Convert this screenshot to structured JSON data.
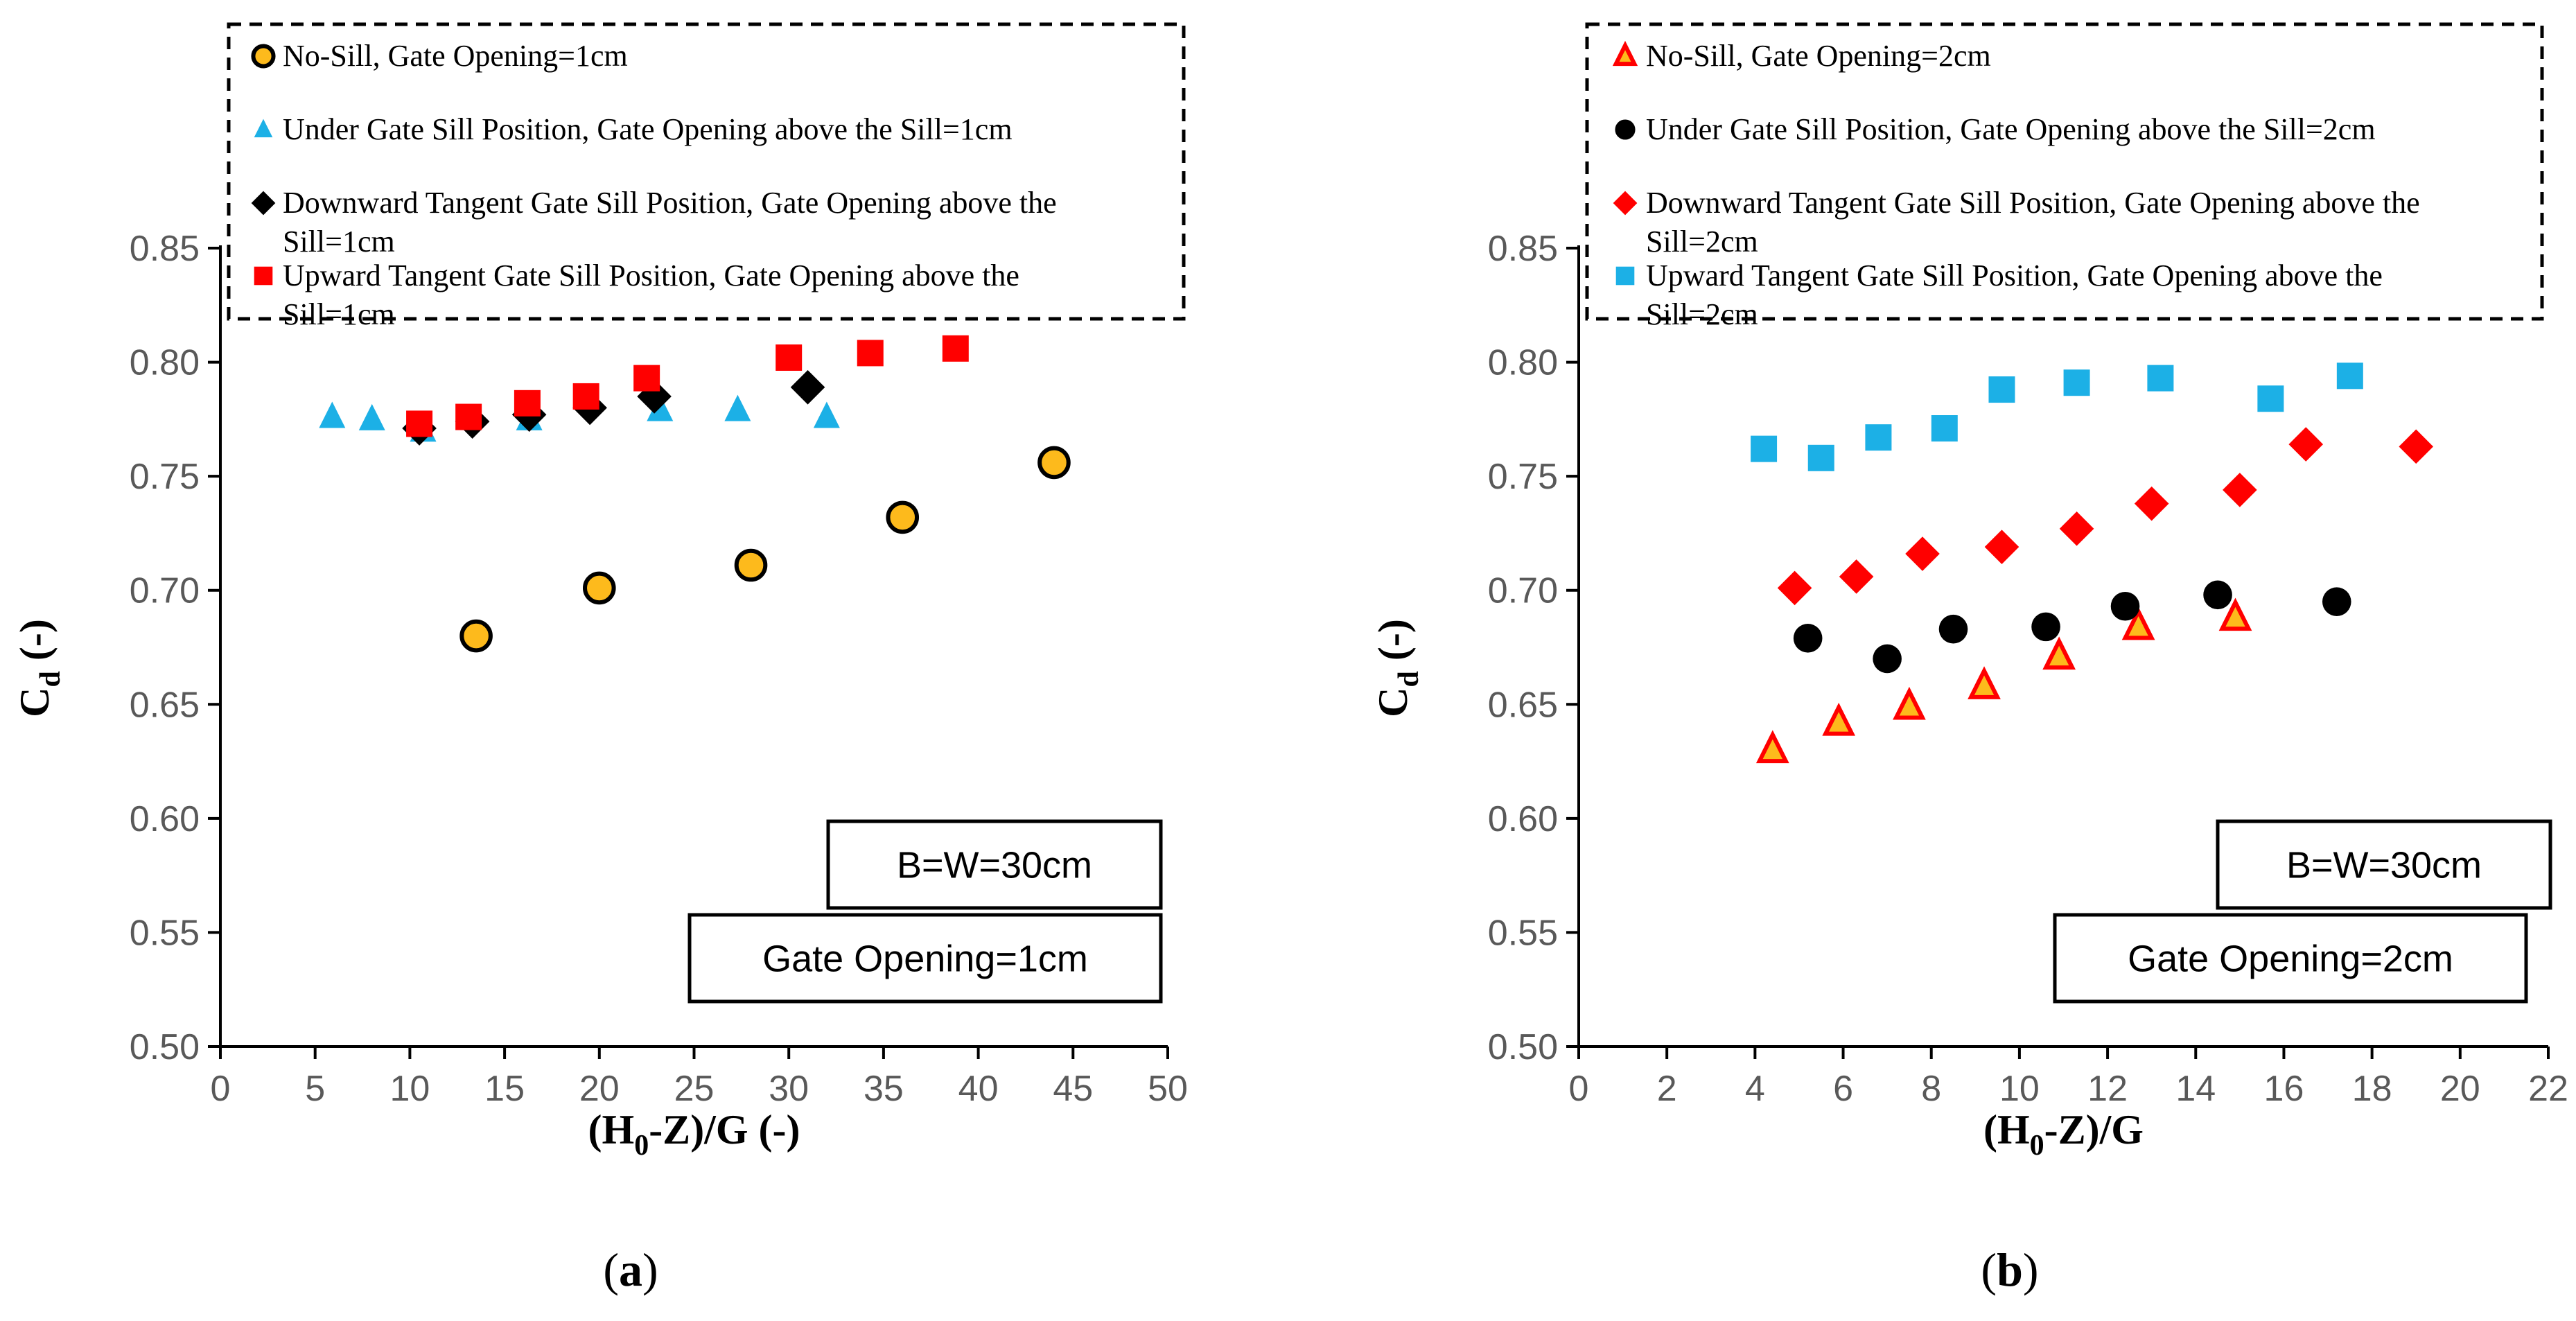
{
  "chart_data": [
    {
      "type": "scatter",
      "panel": "a",
      "panel_label": "a",
      "xlabel": {
        "main": "(H",
        "sub": "0",
        "rest": "-Z)/G (-)"
      },
      "ylabel": {
        "main": "C",
        "sub": "d",
        "rest": " (-)"
      },
      "xlim": [
        0,
        50
      ],
      "ylim": [
        0.5,
        0.85
      ],
      "xticks": [
        "0",
        "5",
        "10",
        "15",
        "20",
        "25",
        "30",
        "35",
        "40",
        "45",
        "50"
      ],
      "xtick_values": [
        0,
        5,
        10,
        15,
        20,
        25,
        30,
        35,
        40,
        45,
        50
      ],
      "yticks": [
        "0.50",
        "0.55",
        "0.60",
        "0.65",
        "0.70",
        "0.75",
        "0.80",
        "0.85"
      ],
      "ytick_values": [
        0.5,
        0.55,
        0.6,
        0.65,
        0.7,
        0.75,
        0.8,
        0.85
      ],
      "annotations": [
        "B=W=30cm",
        "Gate Opening=1cm"
      ],
      "series": [
        {
          "name": "No-Sill, Gate Opening=1cm",
          "marker": "circle",
          "color": "#FDBA1C",
          "edge": "#000000",
          "x": [
            13.5,
            20,
            28,
            36,
            44
          ],
          "y": [
            0.68,
            0.701,
            0.711,
            0.732,
            0.756
          ]
        },
        {
          "name": "Under Gate Sill Position, Gate Opening above the Sill=1cm",
          "marker": "triangle",
          "color": "#1CB0E6",
          "edge": "",
          "x": [
            5.9,
            8,
            10.7,
            16.3,
            23.2,
            27.3,
            32
          ],
          "y": [
            0.776,
            0.775,
            0.77,
            0.775,
            0.779,
            0.779,
            0.776
          ]
        },
        {
          "name": "Downward Tangent Gate Sill Position, Gate Opening above the Sill=1cm",
          "marker": "diamond",
          "color": "#000000",
          "edge": "",
          "x": [
            10.5,
            13.3,
            16.3,
            19.5,
            22.9,
            31
          ],
          "y": [
            0.771,
            0.774,
            0.777,
            0.78,
            0.785,
            0.789
          ]
        },
        {
          "name": "Upward Tangent Gate Sill Position, Gate Opening above the Sill=1cm",
          "marker": "square",
          "color": "#FF0000",
          "edge": "",
          "x": [
            10.5,
            13.1,
            16.2,
            19.3,
            22.5,
            30,
            34.3,
            38.8
          ],
          "y": [
            0.773,
            0.776,
            0.782,
            0.785,
            0.793,
            0.802,
            0.804,
            0.806
          ]
        }
      ]
    },
    {
      "type": "scatter",
      "panel": "b",
      "panel_label": "b",
      "xlabel": {
        "main": "(H",
        "sub": "0",
        "rest": "-Z)/G"
      },
      "ylabel": {
        "main": "C",
        "sub": "d",
        "rest": " (-)"
      },
      "xlim": [
        0,
        22
      ],
      "ylim": [
        0.5,
        0.85
      ],
      "xticks": [
        "0",
        "2",
        "4",
        "6",
        "8",
        "10",
        "12",
        "14",
        "16",
        "18",
        "20",
        "22"
      ],
      "xtick_values": [
        0,
        2,
        4,
        6,
        8,
        10,
        12,
        14,
        16,
        18,
        20,
        22
      ],
      "yticks": [
        "0.50",
        "0.55",
        "0.60",
        "0.65",
        "0.70",
        "0.75",
        "0.80",
        "0.85"
      ],
      "ytick_values": [
        0.5,
        0.55,
        0.6,
        0.65,
        0.7,
        0.75,
        0.8,
        0.85
      ],
      "annotations": [
        "B=W=30cm",
        "Gate Opening=2cm"
      ],
      "series": [
        {
          "name": "No-Sill, Gate Opening=2cm",
          "marker": "triangle",
          "color": "#FDBA1C",
          "edge": "#FF0000",
          "x": [
            4.4,
            5.9,
            7.5,
            9.2,
            10.9,
            12.7,
            14.9
          ],
          "y": [
            0.63,
            0.642,
            0.649,
            0.658,
            0.671,
            0.684,
            0.688
          ]
        },
        {
          "name": "Under Gate Sill Position, Gate Opening above the Sill=2cm",
          "marker": "circle",
          "color": "#000000",
          "edge": "",
          "x": [
            5.2,
            7,
            8.5,
            10.6,
            12.4,
            14.5,
            17.2
          ],
          "y": [
            0.679,
            0.67,
            0.683,
            0.684,
            0.693,
            0.698,
            0.695
          ]
        },
        {
          "name": "Downward Tangent Gate Sill Position, Gate Opening above the Sill=2cm",
          "marker": "diamond",
          "color": "#FF0000",
          "edge": "",
          "x": [
            4.9,
            6.3,
            7.8,
            9.6,
            11.3,
            13,
            15,
            16.5,
            19
          ],
          "y": [
            0.701,
            0.706,
            0.716,
            0.719,
            0.727,
            0.738,
            0.744,
            0.764,
            0.763
          ]
        },
        {
          "name": "Upward Tangent Gate Sill Position, Gate Opening above the Sill=2cm",
          "marker": "square",
          "color": "#1CB0E6",
          "edge": "",
          "x": [
            4.2,
            5.5,
            6.8,
            8.3,
            9.6,
            11.3,
            13.2,
            15.7,
            17.5
          ],
          "y": [
            0.762,
            0.758,
            0.767,
            0.771,
            0.788,
            0.791,
            0.793,
            0.784,
            0.794
          ]
        }
      ]
    }
  ]
}
